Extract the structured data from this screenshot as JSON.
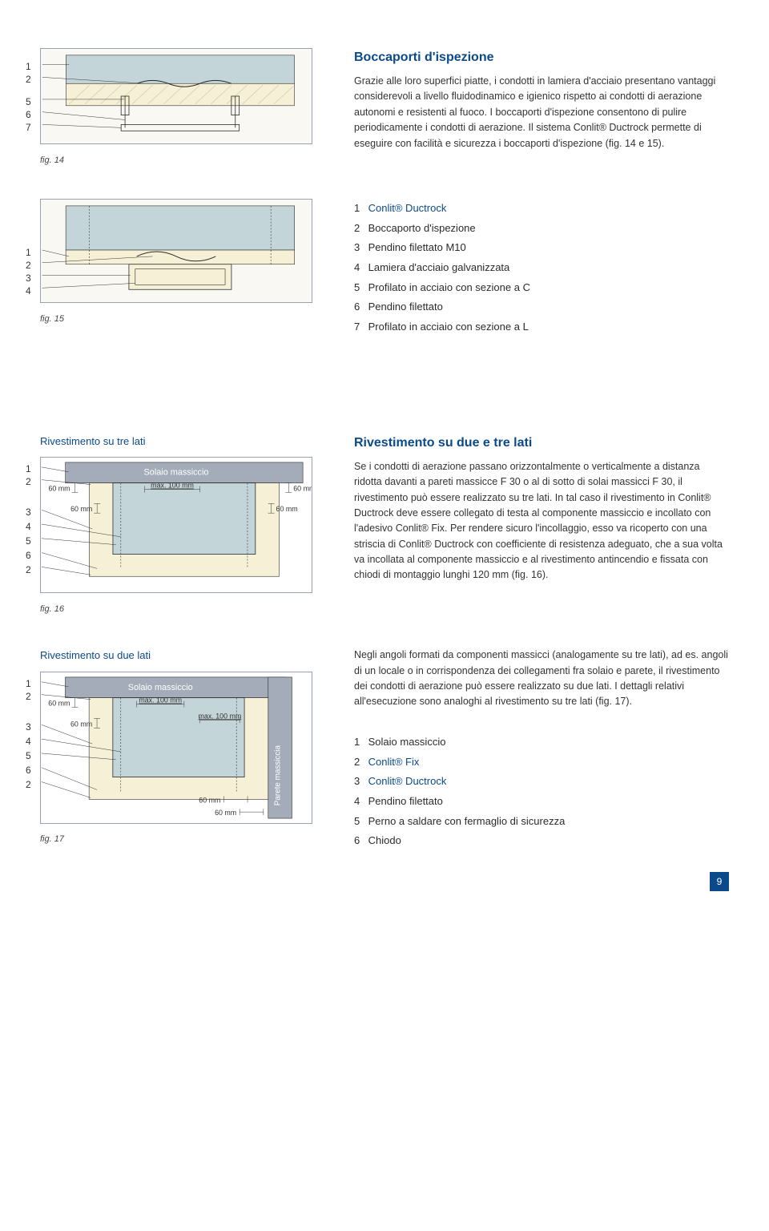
{
  "section1": {
    "title": "Boccaporti d'ispezione",
    "body": "Grazie alle loro superfici piatte, i condotti in lamiera d'acciaio presentano vantaggi considerevoli a livello fluidodinamico e igienico rispetto ai condotti di aerazione autonomi e resistenti al fuoco. I boccaporti d'ispezione consentono di pulire periodicamente i condotti di aerazione. Il sistema Conlit® Ductrock permette di eseguire con facilità e sicurezza i boccaporti d'ispezione (fig. 14 e 15).",
    "fig14_caption": "fig. 14",
    "fig15_caption": "fig. 15",
    "callouts14": [
      "1",
      "2",
      "5",
      "6",
      "7"
    ],
    "callouts15": [
      "1",
      "2",
      "3",
      "4"
    ],
    "legend": [
      {
        "n": "1",
        "t": "Conlit® Ductrock",
        "blue": true
      },
      {
        "n": "2",
        "t": "Boccaporto d'ispezione"
      },
      {
        "n": "3",
        "t": "Pendino filettato M10"
      },
      {
        "n": "4",
        "t": "Lamiera d'acciaio galvanizzata"
      },
      {
        "n": "5",
        "t": "Profilato in acciaio con sezione a C"
      },
      {
        "n": "6",
        "t": "Pendino filettato"
      },
      {
        "n": "7",
        "t": "Profilato in acciaio con sezione a L"
      }
    ]
  },
  "section2": {
    "title": "Rivestimento su due e tre lati",
    "body1": "Se i condotti di aerazione passano orizzontalmente o verticalmente a distanza ridotta davanti a pareti massicce F 30 o al di sotto di solai massicci F 30, il rivestimento può essere realizzato su tre lati. In tal caso il rivestimento in Conlit® Ductrock deve essere collegato di testa al componente massiccio e incollato con l'adesivo Conlit® Fix. Per rendere sicuro l'incollaggio, esso va ricoperto con una striscia di Conlit® Ductrock con coefficiente di resistenza adeguato, che a sua volta va incollata al componente massiccio e al rivestimento antincendio e fissata con chiodi di montaggio lunghi 120 mm (fig. 16).",
    "body2": "Negli angoli formati da componenti massicci (analogamente su tre lati), ad es. angoli di un locale o in corrispondenza dei collegamenti fra solaio e parete, il rivestimento dei condotti di aerazione può essere realizzato su due lati. I dettagli relativi all'esecuzione sono analoghi al rivestimento su tre lati (fig. 17).",
    "fig16_title": "Rivestimento su tre lati",
    "fig16_caption": "fig. 16",
    "fig17_title": "Rivestimento su due lati",
    "fig17_caption": "fig. 17",
    "slab_label": "Solaio massiccio",
    "wall_label": "Parete massiccia",
    "dim_60": "60 mm",
    "dim_max100": "max. 100 mm",
    "callouts_sides": [
      "1",
      "2",
      "3",
      "4",
      "5",
      "6",
      "2"
    ],
    "legend2": [
      {
        "n": "1",
        "t": "Solaio massiccio"
      },
      {
        "n": "2",
        "t": "Conlit® Fix",
        "blue": true
      },
      {
        "n": "3",
        "t": "Conlit® Ductrock",
        "blue": true
      },
      {
        "n": "4",
        "t": "Pendino filettato"
      },
      {
        "n": "5",
        "t": "Perno a saldare con fermaglio di sicurezza"
      },
      {
        "n": "6",
        "t": "Chiodo"
      }
    ]
  },
  "colors": {
    "slab": "#a3acb8",
    "duct": "#c4d5da",
    "wool": "#f5f0d6",
    "wool_hatch": "#dcd6b8",
    "outline": "#2b2b2b",
    "blue": "#0a4a8a",
    "cream_bg": "#faf8f3"
  },
  "page": "9"
}
